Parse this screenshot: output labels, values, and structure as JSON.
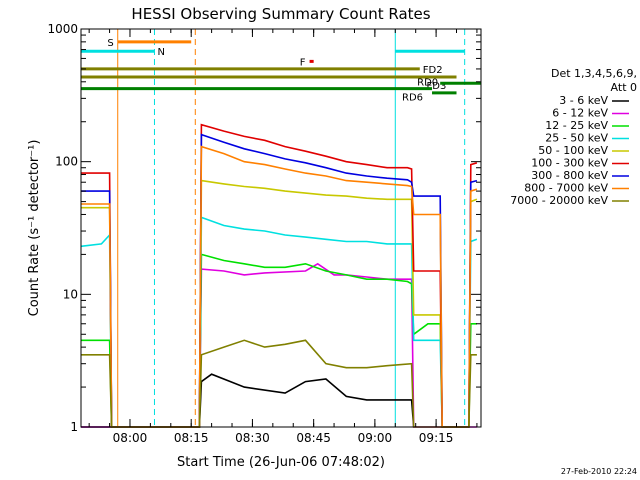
{
  "chart_data": {
    "type": "line",
    "title": "HESSI Observing Summary Count Rates",
    "xlabel": "Start Time (26-Jun-06 07:48:02)",
    "ylabel": "Count Rate (s⁻¹ detector⁻¹)",
    "y_scale": "log",
    "ylim": [
      1,
      1000
    ],
    "x_unit": "minutes after 07:48:02",
    "xlim": [
      0,
      98
    ],
    "x_ticks": [
      {
        "label": "08:00",
        "value": 12
      },
      {
        "label": "08:15",
        "value": 27
      },
      {
        "label": "08:30",
        "value": 42
      },
      {
        "label": "08:45",
        "value": 57
      },
      {
        "label": "09:00",
        "value": 72
      },
      {
        "label": "09:15",
        "value": 87
      }
    ],
    "y_ticks": [
      {
        "label": "1",
        "value": 1
      },
      {
        "label": "10",
        "value": 10
      },
      {
        "label": "100",
        "value": 100
      },
      {
        "label": "1000",
        "value": 1000
      }
    ],
    "legend_title": [
      "Det 1,3,4,5,6,9,",
      "Att 0"
    ],
    "legend_position": "right",
    "grid": false,
    "footer_date": "27-Feb-2010 22:24",
    "series": [
      {
        "name": "3 - 6 keV",
        "color": "#000000",
        "points": [
          [
            0,
            1
          ],
          [
            29,
            1
          ],
          [
            29.5,
            2.2
          ],
          [
            32,
            2.5
          ],
          [
            40,
            2
          ],
          [
            50,
            1.8
          ],
          [
            55,
            2.2
          ],
          [
            60,
            2.3
          ],
          [
            65,
            1.7
          ],
          [
            70,
            1.6
          ],
          [
            81,
            1.6
          ],
          [
            81.5,
            1
          ]
        ]
      },
      {
        "name": "6 - 12 keV",
        "color": "#e000e0",
        "points": [
          [
            0,
            1
          ],
          [
            29,
            1
          ],
          [
            29.5,
            15.5
          ],
          [
            35,
            15
          ],
          [
            40,
            14
          ],
          [
            45,
            14.5
          ],
          [
            55,
            15
          ],
          [
            58,
            17
          ],
          [
            62,
            14
          ],
          [
            65,
            14
          ],
          [
            70,
            13.5
          ],
          [
            75,
            13
          ],
          [
            81,
            13
          ],
          [
            81.5,
            1
          ],
          [
            97,
            1
          ]
        ]
      },
      {
        "name": "12 - 25 keV",
        "color": "#00e000",
        "points": [
          [
            0,
            4.5
          ],
          [
            7,
            4.5
          ],
          [
            7.5,
            1
          ],
          [
            29,
            1
          ],
          [
            29.5,
            20
          ],
          [
            35,
            18
          ],
          [
            40,
            17
          ],
          [
            45,
            16
          ],
          [
            50,
            16
          ],
          [
            55,
            17
          ],
          [
            60,
            15
          ],
          [
            65,
            14
          ],
          [
            70,
            13
          ],
          [
            75,
            13
          ],
          [
            80,
            12.5
          ],
          [
            81,
            12
          ],
          [
            81.5,
            5
          ],
          [
            85,
            6
          ],
          [
            88,
            6
          ],
          [
            88.5,
            1
          ],
          [
            95,
            1
          ],
          [
            95.5,
            6
          ],
          [
            97,
            6
          ]
        ]
      },
      {
        "name": "25 - 50 keV",
        "color": "#00e0e0",
        "points": [
          [
            0,
            23
          ],
          [
            5,
            24
          ],
          [
            7,
            28
          ],
          [
            7.5,
            1
          ],
          [
            29,
            1
          ],
          [
            29.5,
            38
          ],
          [
            35,
            33
          ],
          [
            40,
            31
          ],
          [
            45,
            30
          ],
          [
            50,
            28
          ],
          [
            55,
            27
          ],
          [
            60,
            26
          ],
          [
            65,
            25
          ],
          [
            70,
            25
          ],
          [
            75,
            24
          ],
          [
            80,
            24
          ],
          [
            81,
            24
          ],
          [
            81.5,
            4.5
          ],
          [
            88,
            4.5
          ],
          [
            88.5,
            1
          ],
          [
            95,
            1
          ],
          [
            95.5,
            25
          ],
          [
            97,
            26
          ]
        ]
      },
      {
        "name": "50 - 100 keV",
        "color": "#c8c800",
        "points": [
          [
            0,
            45
          ],
          [
            7,
            45
          ],
          [
            7.5,
            1
          ],
          [
            29,
            1
          ],
          [
            29.5,
            72
          ],
          [
            35,
            68
          ],
          [
            40,
            65
          ],
          [
            45,
            63
          ],
          [
            50,
            60
          ],
          [
            55,
            58
          ],
          [
            60,
            56
          ],
          [
            65,
            55
          ],
          [
            70,
            53
          ],
          [
            75,
            52
          ],
          [
            80,
            52
          ],
          [
            81,
            52
          ],
          [
            81.5,
            7
          ],
          [
            88,
            7
          ],
          [
            88.5,
            1
          ],
          [
            95,
            1
          ],
          [
            95.5,
            50
          ],
          [
            97,
            52
          ]
        ]
      },
      {
        "name": "100 - 300 keV",
        "color": "#e00000",
        "points": [
          [
            0,
            82
          ],
          [
            7,
            82
          ],
          [
            7.5,
            1
          ],
          [
            29,
            1
          ],
          [
            29.5,
            190
          ],
          [
            35,
            170
          ],
          [
            40,
            155
          ],
          [
            45,
            145
          ],
          [
            50,
            130
          ],
          [
            55,
            120
          ],
          [
            60,
            110
          ],
          [
            65,
            100
          ],
          [
            70,
            95
          ],
          [
            75,
            90
          ],
          [
            80,
            90
          ],
          [
            81,
            88
          ],
          [
            81.5,
            15
          ],
          [
            88,
            15
          ],
          [
            88.5,
            1
          ],
          [
            95,
            1
          ],
          [
            95.5,
            95
          ],
          [
            97,
            98
          ]
        ]
      },
      {
        "name": "300 - 800 keV",
        "color": "#0000e0",
        "points": [
          [
            0,
            60
          ],
          [
            7,
            60
          ],
          [
            7.5,
            1
          ],
          [
            29,
            1
          ],
          [
            29.5,
            160
          ],
          [
            35,
            140
          ],
          [
            40,
            125
          ],
          [
            45,
            115
          ],
          [
            50,
            105
          ],
          [
            55,
            98
          ],
          [
            60,
            90
          ],
          [
            65,
            82
          ],
          [
            70,
            78
          ],
          [
            75,
            75
          ],
          [
            80,
            73
          ],
          [
            81,
            70
          ],
          [
            81.5,
            55
          ],
          [
            88,
            55
          ],
          [
            88.5,
            1
          ],
          [
            95,
            1
          ],
          [
            95.5,
            70
          ],
          [
            97,
            72
          ]
        ]
      },
      {
        "name": "800 - 7000 keV",
        "color": "#ff8000",
        "points": [
          [
            0,
            48
          ],
          [
            7,
            48
          ],
          [
            7.5,
            1
          ],
          [
            29,
            1
          ],
          [
            29.5,
            130
          ],
          [
            35,
            115
          ],
          [
            40,
            100
          ],
          [
            45,
            95
          ],
          [
            50,
            88
          ],
          [
            55,
            82
          ],
          [
            60,
            78
          ],
          [
            65,
            72
          ],
          [
            70,
            70
          ],
          [
            75,
            68
          ],
          [
            80,
            66
          ],
          [
            81,
            65
          ],
          [
            81.5,
            40
          ],
          [
            88,
            40
          ],
          [
            88.5,
            1
          ],
          [
            95,
            1
          ],
          [
            95.5,
            60
          ],
          [
            97,
            62
          ]
        ]
      },
      {
        "name": "7000 - 20000 keV",
        "color": "#808000",
        "points": [
          [
            0,
            3.5
          ],
          [
            7,
            3.5
          ],
          [
            7.5,
            1
          ],
          [
            29,
            1
          ],
          [
            29.5,
            3.5
          ],
          [
            35,
            4
          ],
          [
            40,
            4.5
          ],
          [
            45,
            4
          ],
          [
            50,
            4.2
          ],
          [
            55,
            4.5
          ],
          [
            60,
            3
          ],
          [
            65,
            2.8
          ],
          [
            70,
            2.8
          ],
          [
            75,
            2.9
          ],
          [
            81,
            3
          ],
          [
            81.5,
            1
          ],
          [
            95,
            1
          ],
          [
            95.5,
            3.5
          ],
          [
            97,
            3.5
          ]
        ]
      }
    ],
    "vertical_lines": [
      {
        "label": "",
        "x": 9,
        "style": "solid",
        "color": "#ff8000"
      },
      {
        "label": "",
        "x": 18,
        "style": "dashed",
        "color": "#00e0e0"
      },
      {
        "label": "",
        "x": 28,
        "style": "dashed",
        "color": "#ff8000"
      },
      {
        "label": "",
        "x": 77,
        "style": "solid",
        "color": "#00e0e0"
      },
      {
        "label": "",
        "x": 94,
        "style": "dashed",
        "color": "#00e0e0"
      }
    ],
    "flags": [
      {
        "label": "S",
        "color": "#ff8000",
        "x_start": 9,
        "x_end": 27,
        "y": 800,
        "label_side": "left"
      },
      {
        "label": "N",
        "color": "#00e0e0",
        "x_start": 0,
        "x_end": 18,
        "y": 680,
        "label_side": "end"
      },
      {
        "label": "N",
        "color": "#00e0e0",
        "x_start": 77,
        "x_end": 94,
        "y": 680,
        "label_side": "none"
      },
      {
        "label": "F",
        "color": "#e00000",
        "x_start": 56,
        "x_end": 57,
        "y": 570,
        "label_side": "left"
      },
      {
        "label": "FD2",
        "color": "#808000",
        "x_start": 0,
        "x_end": 83,
        "y": 500,
        "label_side": "end"
      },
      {
        "label": "FD3",
        "color": "#808000",
        "x_start": 0,
        "x_end": 92,
        "y": 435,
        "label_side": "inline"
      },
      {
        "label": "RD0",
        "color": "#008000",
        "x_start": 88,
        "x_end": 98,
        "y": 390,
        "label_side": "above-left"
      },
      {
        "label": "RD6",
        "color": "#008000",
        "x_start": 0,
        "x_end": 86,
        "y": 355,
        "label_side": "inline"
      },
      {
        "label": "RD6",
        "color": "#008000",
        "x_start": 86,
        "x_end": 92,
        "y": 330,
        "label_side": "none"
      }
    ]
  }
}
